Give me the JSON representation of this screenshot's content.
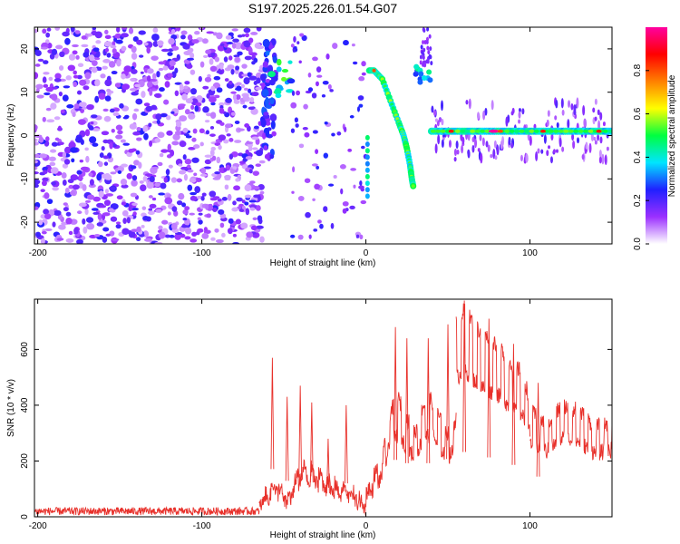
{
  "title": "S197.2025.226.01.54.G07",
  "chart_data": [
    {
      "type": "heatmap",
      "title": "S197.2025.226.01.54.G07",
      "xlabel": "Height of straight line (km)",
      "ylabel": "Frequency (Hz)",
      "xlim": [
        -202,
        150
      ],
      "ylim": [
        -25,
        25
      ],
      "xticks": [
        -200,
        -100,
        0,
        100
      ],
      "yticks": [
        -20,
        -10,
        0,
        10,
        20
      ],
      "colorbar": {
        "label": "Normalized spectral amplitude",
        "range": [
          0,
          1
        ],
        "ticks": [
          0.0,
          0.2,
          0.4,
          0.6,
          0.8
        ],
        "stops": [
          "#ffffff",
          "#9b30ff",
          "#2020ff",
          "#00e5ff",
          "#00ff40",
          "#ffff00",
          "#ff8000",
          "#ff0000",
          "#ff00a0"
        ]
      },
      "noise_region": {
        "x_range": [
          -202,
          -63
        ],
        "amplitude_range": [
          0.05,
          0.25
        ]
      },
      "features": [
        {
          "name": "burst-near-minus-60",
          "x_range": [
            -63,
            -40
          ],
          "freq_range": [
            -5,
            22
          ],
          "peak_amplitude": 0.55
        },
        {
          "name": "descending-whistle",
          "points": [
            [
              2,
              15
            ],
            [
              5,
              15
            ],
            [
              10,
              13
            ],
            [
              15,
              8
            ],
            [
              20,
              3
            ],
            [
              23,
              0
            ],
            [
              25,
              -3
            ],
            [
              27,
              -7
            ],
            [
              28,
              -10
            ],
            [
              29,
              -12
            ]
          ],
          "peak_amplitude": 0.8
        },
        {
          "name": "burst-near-35",
          "x_range": [
            30,
            40
          ],
          "freq_range": [
            12,
            16
          ],
          "peak_amplitude": 0.55
        },
        {
          "name": "steady-tone",
          "x_range": [
            40,
            150
          ],
          "frequency": 1,
          "peak_amplitude": 1.0
        }
      ]
    },
    {
      "type": "line",
      "xlabel": "Height of straight line (km)",
      "ylabel": "SNR (10 * v/v)",
      "xlim": [
        -202,
        150
      ],
      "ylim": [
        0,
        780
      ],
      "xticks": [
        -200,
        -100,
        0,
        100
      ],
      "yticks": [
        0,
        200,
        400,
        600
      ],
      "series": [
        {
          "name": "SNR",
          "color": "#e8302a",
          "segments": [
            {
              "x": [
                -202,
                -65
              ],
              "y": [
                20,
                20
              ]
            },
            {
              "x": [
                -65,
                -55,
                -48,
                -40,
                -30,
                -20,
                -10,
                0
              ],
              "y": [
                50,
                130,
                60,
                180,
                170,
                120,
                100,
                40
              ]
            },
            {
              "x": [
                0,
                5,
                10,
                15,
                20,
                25,
                30,
                35,
                40,
                45,
                50,
                55
              ],
              "y": [
                80,
                150,
                200,
                380,
                420,
                350,
                300,
                400,
                420,
                350,
                300,
                350
              ]
            },
            {
              "x": [
                55,
                60,
                65,
                70,
                75,
                80,
                85,
                90,
                95,
                100
              ],
              "y": [
                700,
                740,
                700,
                660,
                640,
                620,
                580,
                540,
                520,
                420
              ]
            },
            {
              "x": [
                100,
                110,
                120,
                130,
                140,
                150
              ],
              "y": [
                380,
                330,
                400,
                380,
                320,
                340
              ]
            }
          ],
          "peaks": [
            [
              -57,
              570
            ],
            [
              -48,
              430
            ],
            [
              -40,
              470
            ],
            [
              -33,
              410
            ],
            [
              -23,
              280
            ],
            [
              -12,
              400
            ],
            [
              18,
              680
            ],
            [
              25,
              640
            ],
            [
              38,
              640
            ],
            [
              50,
              690
            ],
            [
              60,
              775
            ],
            [
              75,
              710
            ],
            [
              90,
              620
            ],
            [
              105,
              480
            ]
          ]
        }
      ]
    }
  ]
}
